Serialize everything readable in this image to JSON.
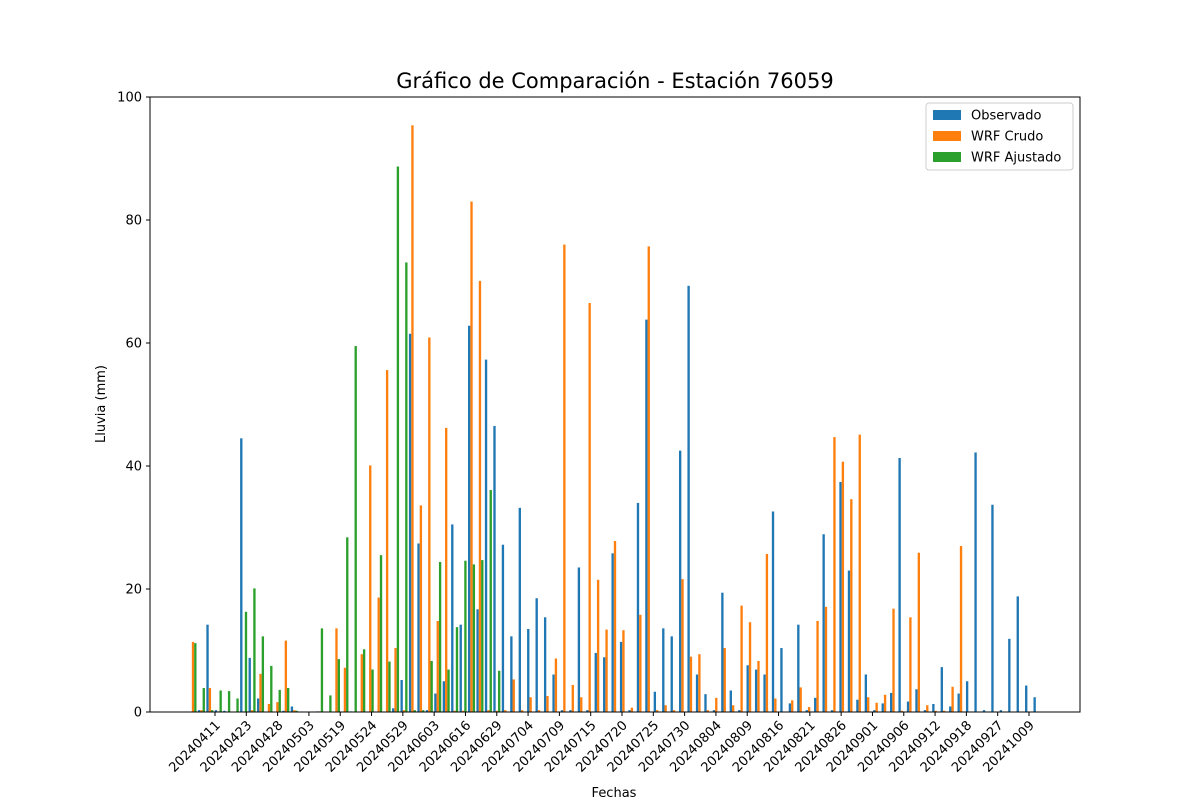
{
  "chart_data": {
    "type": "bar",
    "title": "Gráfico de Comparación - Estación 76059",
    "xlabel": "Fechas",
    "ylabel": "Lluvia (mm)",
    "ylim": [
      0,
      100
    ],
    "yticks": [
      0,
      20,
      40,
      60,
      80,
      100
    ],
    "legend": {
      "placement": "top-right"
    },
    "grid": false,
    "x_tick_labels": [
      "20240411",
      "20240423",
      "20240428",
      "20240503",
      "20240519",
      "20240524",
      "20240529",
      "20240603",
      "20240616",
      "20240629",
      "20240704",
      "20240709",
      "20240715",
      "20240720",
      "20240725",
      "20240730",
      "20240804",
      "20240809",
      "20240816",
      "20240821",
      "20240826",
      "20240901",
      "20240906",
      "20240912",
      "20240918",
      "20240927",
      "20241009"
    ],
    "series": [
      {
        "name": "Observado",
        "color": "#1f77b4",
        "values": [
          0,
          0.3,
          14.2,
          0.3,
          0.2,
          0,
          44.5,
          8.8,
          2.2,
          0,
          0,
          0.2,
          0.9,
          0,
          0,
          0.1,
          0,
          0,
          0,
          0.1,
          0,
          0,
          0,
          0,
          0.6,
          5.2,
          61.5,
          27.4,
          0.3,
          3,
          5,
          30.5,
          14.2,
          62.8,
          16.7,
          57.3,
          46.5,
          27.2,
          12.3,
          33.2,
          13.5,
          18.5,
          15.4,
          6.1,
          0.3,
          0.3,
          23.5,
          0.3,
          9.6,
          8.9,
          25.8,
          11.4,
          0.3,
          34,
          63.8,
          3.3,
          13.6,
          12.3,
          42.5,
          69.3,
          6.1,
          2.9,
          0.3,
          19.4,
          3.5,
          0.3,
          7.6,
          6.9,
          6.1,
          32.6,
          10.4,
          1.4,
          14.2,
          0.3,
          2.3,
          28.9,
          0.3,
          37.4,
          23,
          2,
          6.1,
          0.3,
          1.4,
          3.1,
          41.3,
          1.7,
          3.7,
          0.3,
          1.3,
          7.3,
          0.9,
          3,
          5,
          42.2,
          0.3,
          33.7,
          0.3,
          11.9,
          18.8,
          4.3,
          2.4
        ]
      },
      {
        "name": "WRF Crudo",
        "color": "#ff7f0e",
        "values": [
          11.4,
          0.3,
          3.9,
          0.1,
          0,
          0,
          0,
          0.3,
          6.2,
          1.3,
          1.6,
          11.6,
          0.3,
          0,
          0,
          0.1,
          0,
          13.6,
          7.2,
          0,
          9.4,
          40.1,
          18.6,
          55.6,
          10.4,
          0.3,
          95.4,
          33.6,
          60.9,
          14.8,
          46.2,
          0.2,
          0.2,
          83,
          70.1,
          0.3,
          0.2,
          0.3,
          5.3,
          0.3,
          2.4,
          0.3,
          2.6,
          8.7,
          76,
          4.4,
          2.4,
          66.5,
          21.5,
          13.4,
          27.8,
          13.3,
          0.7,
          15.8,
          75.7,
          0.3,
          1.1,
          0.3,
          21.6,
          9,
          9.4,
          0.3,
          2.3,
          10.4,
          1.1,
          17.3,
          14.6,
          8.3,
          25.7,
          2.2,
          0,
          1.9,
          4,
          0.8,
          14.8,
          17.1,
          44.7,
          40.7,
          34.6,
          45.1,
          2.4,
          1.5,
          2.8,
          16.8,
          0.2,
          15.4,
          25.9,
          1.1,
          0.2,
          0.2,
          4.1,
          27
        ]
      },
      {
        "name": "WRF Ajustado",
        "color": "#2ca02c",
        "values": [
          11.2,
          3.9,
          0.3,
          3.5,
          3.4,
          2.2,
          16.3,
          20.1,
          12.3,
          7.5,
          3.6,
          3.9,
          0.2,
          0,
          0,
          13.6,
          2.7,
          8.6,
          28.4,
          59.5,
          10.2,
          6.9,
          25.5,
          8.2,
          88.7,
          73.1,
          0.3,
          0.3,
          8.3,
          24.4,
          6.9,
          13.8,
          24.6,
          24,
          24.7,
          36.1,
          6.7
        ]
      }
    ]
  }
}
